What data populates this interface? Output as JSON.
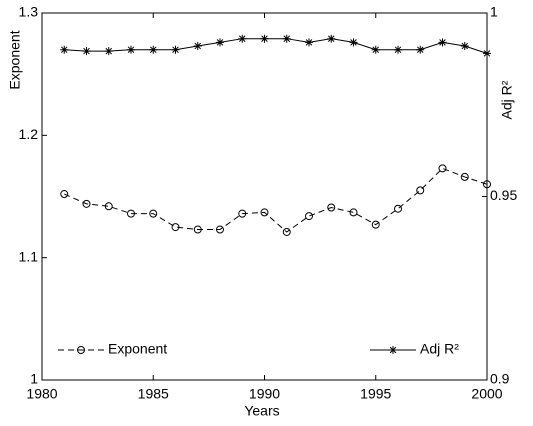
{
  "chart_data": {
    "type": "line",
    "x_label": "Years",
    "y_label": "Exponent",
    "y2_label": "Adj R²",
    "x": [
      1981,
      1982,
      1983,
      1984,
      1985,
      1986,
      1987,
      1988,
      1989,
      1990,
      1991,
      1992,
      1993,
      1994,
      1995,
      1996,
      1997,
      1998,
      1999,
      2000
    ],
    "xlim": [
      1980,
      2000
    ],
    "xticks": [
      1980,
      1985,
      1990,
      1995,
      2000
    ],
    "ylim": [
      1,
      1.3
    ],
    "yticks": [
      1,
      1.1,
      1.2,
      1.3
    ],
    "y2lim": [
      0.9,
      1
    ],
    "y2ticks": [
      0.9,
      0.95,
      1
    ],
    "series": [
      {
        "name": "Exponent",
        "color": "#000000",
        "marker": "circle",
        "dash": "dashed",
        "legend": "lower left",
        "values": [
          1.152,
          1.144,
          1.142,
          1.136,
          1.136,
          1.125,
          1.123,
          1.123,
          1.136,
          1.137,
          1.121,
          1.134,
          1.141,
          1.137,
          1.127,
          1.14,
          1.155,
          1.173,
          1.166,
          1.16
        ]
      },
      {
        "name": "Adj R²",
        "color": "#000000",
        "marker": "star",
        "dash": "solid",
        "legend": "lower right",
        "axis": "y2",
        "values": [
          0.99,
          0.9896,
          0.9896,
          0.99,
          0.99,
          0.99,
          0.991,
          0.992,
          0.993,
          0.993,
          0.993,
          0.992,
          0.993,
          0.992,
          0.99,
          0.99,
          0.99,
          0.992,
          0.991,
          0.989
        ]
      }
    ]
  }
}
